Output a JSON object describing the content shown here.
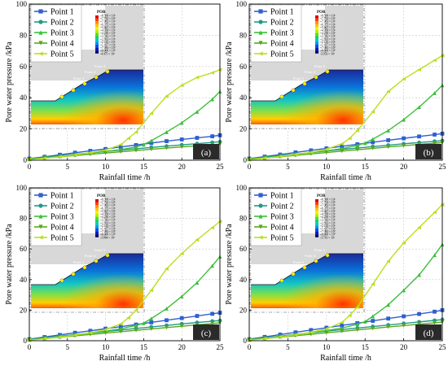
{
  "panels": [
    {
      "label": "(a)",
      "chart_data": {
        "type": "line",
        "xlabel": "Rainfall time /h",
        "ylabel": "Pore water pressure /kPa",
        "xlim": [
          0,
          25
        ],
        "ylim": [
          0,
          100
        ],
        "xticks": [
          0,
          5,
          10,
          15,
          20,
          25
        ],
        "yticks": [
          0,
          20,
          40,
          60,
          80,
          100
        ],
        "legend_position": "top-left",
        "series": [
          {
            "name": "Point 1",
            "color": "#2f5fd0",
            "marker": "square",
            "x": [
              0,
              2,
              4,
              6,
              8,
              10,
              12,
              14,
              16,
              18,
              20,
              22,
              24,
              25
            ],
            "y": [
              1,
              2.2,
              3.5,
              4.8,
              6,
              7.2,
              8.5,
              9.7,
              11,
              12.2,
              13.3,
              14.3,
              15.3,
              16
            ]
          },
          {
            "name": "Point 2",
            "color": "#1f9a8a",
            "marker": "circle",
            "x": [
              0,
              2,
              4,
              6,
              8,
              10,
              12,
              14,
              16,
              18,
              20,
              22,
              24,
              25
            ],
            "y": [
              0.8,
              1.8,
              2.8,
              3.8,
              4.7,
              5.6,
              6.5,
              7.3,
              8.2,
              9,
              9.8,
              10.6,
              11.4,
              11.8
            ]
          },
          {
            "name": "Point 3",
            "color": "#3bbf3b",
            "marker": "triangle-up",
            "x": [
              0,
              2,
              4,
              6,
              8,
              10,
              12,
              14,
              15,
              16,
              18,
              20,
              22,
              24,
              25
            ],
            "y": [
              0.6,
              1.6,
              2.6,
              3.6,
              4.6,
              5.6,
              6.8,
              8.5,
              10,
              12.5,
              18,
              24,
              31,
              39,
              44
            ]
          },
          {
            "name": "Point 4",
            "color": "#58a81c",
            "marker": "triangle-down",
            "x": [
              0,
              2,
              4,
              6,
              8,
              10,
              12,
              14,
              16,
              18,
              20,
              22,
              24,
              25
            ],
            "y": [
              0.5,
              1.3,
              2.1,
              3,
              3.8,
              4.6,
              5.4,
              6.2,
              7,
              7.8,
              8.5,
              9.2,
              9.9,
              10.3
            ]
          },
          {
            "name": "Point 5",
            "color": "#b9e020",
            "marker": "triangle-left",
            "x": [
              0,
              2,
              4,
              6,
              8,
              10,
              12,
              13,
              14,
              16,
              18,
              20,
              22,
              24,
              25
            ],
            "y": [
              0.4,
              1.2,
              2.2,
              3.4,
              4.8,
              6.5,
              10,
              14,
              18,
              30,
              41,
              48,
              53,
              56,
              58
            ]
          }
        ]
      },
      "inset": {
        "legend_title": "POR",
        "legend_values": [
          "+8.500 × 10¹",
          "+7.792 × 10¹",
          "+7.083 × 10¹",
          "+6.375 × 10¹",
          "+5.667 × 10¹",
          "+4.958 × 10¹",
          "+4.250 × 10¹",
          "+3.542 × 10¹",
          "+2.833 × 10¹",
          "+2.125 × 10¹",
          "+1.417 × 10¹",
          "+7.083 × 10⁰",
          "+0.000 × 10⁰",
          "-4.475 × 10¹"
        ],
        "point_labels": [
          "Point 1",
          "Point 2",
          "Point 3",
          "Point 4",
          "Point 5"
        ]
      }
    },
    {
      "label": "(b)",
      "chart_data": {
        "type": "line",
        "xlabel": "Rainfall time /h",
        "ylabel": "Pore water pressure /kPa",
        "xlim": [
          0,
          25
        ],
        "ylim": [
          0,
          100
        ],
        "xticks": [
          0,
          5,
          10,
          15,
          20,
          25
        ],
        "yticks": [
          0,
          20,
          40,
          60,
          80,
          100
        ],
        "legend_position": "top-left",
        "series": [
          {
            "name": "Point 1",
            "color": "#2f5fd0",
            "marker": "square",
            "x": [
              0,
              2,
              4,
              6,
              8,
              10,
              12,
              14,
              16,
              18,
              20,
              22,
              24,
              25
            ],
            "y": [
              1,
              2.3,
              3.6,
              5,
              6.3,
              7.6,
              8.9,
              10.2,
              11.5,
              12.8,
              14,
              15.2,
              16.4,
              17
            ]
          },
          {
            "name": "Point 2",
            "color": "#1f9a8a",
            "marker": "circle",
            "x": [
              0,
              2,
              4,
              6,
              8,
              10,
              12,
              14,
              16,
              18,
              20,
              22,
              24,
              25
            ],
            "y": [
              0.8,
              1.8,
              2.9,
              3.9,
              4.9,
              5.9,
              6.9,
              7.8,
              8.7,
              9.6,
              10.5,
              11.3,
              12.1,
              12.5
            ]
          },
          {
            "name": "Point 3",
            "color": "#3bbf3b",
            "marker": "triangle-up",
            "x": [
              0,
              2,
              4,
              6,
              8,
              10,
              12,
              14,
              15,
              16,
              18,
              20,
              22,
              24,
              25
            ],
            "y": [
              0.6,
              1.6,
              2.6,
              3.7,
              4.8,
              6,
              7.4,
              9.5,
              11,
              13.5,
              19,
              26,
              34,
              43,
              48
            ]
          },
          {
            "name": "Point 4",
            "color": "#58a81c",
            "marker": "triangle-down",
            "x": [
              0,
              2,
              4,
              6,
              8,
              10,
              12,
              14,
              16,
              18,
              20,
              22,
              24,
              25
            ],
            "y": [
              0.5,
              1.3,
              2.2,
              3.1,
              4,
              4.9,
              5.8,
              6.7,
              7.6,
              8.5,
              9.3,
              10.1,
              10.9,
              11.3
            ]
          },
          {
            "name": "Point 5",
            "color": "#b9e020",
            "marker": "triangle-left",
            "x": [
              0,
              2,
              4,
              6,
              8,
              10,
              12,
              13,
              14,
              16,
              18,
              20,
              22,
              24,
              25
            ],
            "y": [
              0.4,
              1.3,
              2.3,
              3.6,
              5,
              7,
              10.5,
              14,
              19,
              31,
              44,
              52,
              58,
              64,
              67
            ]
          }
        ]
      },
      "inset": {
        "legend_title": "POR",
        "legend_values": [
          "+8.500 × 10¹",
          "+7.792 × 10¹",
          "+7.083 × 10¹",
          "+6.375 × 10¹",
          "+5.667 × 10¹",
          "+4.958 × 10¹",
          "+4.250 × 10¹",
          "+3.542 × 10¹",
          "+2.833 × 10¹",
          "+2.125 × 10¹",
          "+1.417 × 10¹",
          "+7.083 × 10⁰",
          "+0.000 × 10⁰",
          "-3.953 × 10¹"
        ],
        "point_labels": [
          "Point 1",
          "Point 2",
          "Point 3",
          "Point 4",
          "Point 5"
        ]
      }
    },
    {
      "label": "(c)",
      "chart_data": {
        "type": "line",
        "xlabel": "Rainfall time /h",
        "ylabel": "Pore water pressure /kPa",
        "xlim": [
          0,
          25
        ],
        "ylim": [
          0,
          100
        ],
        "xticks": [
          0,
          5,
          10,
          15,
          20,
          25
        ],
        "yticks": [
          0,
          20,
          40,
          60,
          80,
          100
        ],
        "legend_position": "top-left",
        "series": [
          {
            "name": "Point 1",
            "color": "#2f5fd0",
            "marker": "square",
            "x": [
              0,
              2,
              4,
              6,
              8,
              10,
              12,
              14,
              16,
              18,
              20,
              22,
              24,
              25
            ],
            "y": [
              1,
              2.4,
              3.8,
              5.2,
              6.5,
              7.9,
              9.2,
              10.6,
              12,
              13.4,
              14.8,
              16.2,
              17.6,
              18.3
            ]
          },
          {
            "name": "Point 2",
            "color": "#1f9a8a",
            "marker": "circle",
            "x": [
              0,
              2,
              4,
              6,
              8,
              10,
              12,
              14,
              16,
              18,
              20,
              22,
              24,
              25
            ],
            "y": [
              0.8,
              1.9,
              3,
              4,
              5,
              6,
              7,
              8,
              9,
              10,
              11,
              11.9,
              12.8,
              13.2
            ]
          },
          {
            "name": "Point 3",
            "color": "#3bbf3b",
            "marker": "triangle-up",
            "x": [
              0,
              2,
              4,
              6,
              8,
              10,
              12,
              14,
              15,
              16,
              18,
              20,
              22,
              24,
              25
            ],
            "y": [
              0.6,
              1.6,
              2.7,
              3.8,
              5,
              6.3,
              7.8,
              10,
              11.5,
              14.5,
              21,
              29,
              38,
              49,
              55
            ]
          },
          {
            "name": "Point 4",
            "color": "#58a81c",
            "marker": "triangle-down",
            "x": [
              0,
              2,
              4,
              6,
              8,
              10,
              12,
              14,
              16,
              18,
              20,
              22,
              24,
              25
            ],
            "y": [
              0.5,
              1.4,
              2.3,
              3.2,
              4.1,
              5,
              5.9,
              6.8,
              7.7,
              8.6,
              9.5,
              10.4,
              11.3,
              11.7
            ]
          },
          {
            "name": "Point 5",
            "color": "#b9e020",
            "marker": "triangle-left",
            "x": [
              0,
              2,
              4,
              6,
              8,
              10,
              12,
              13,
              14,
              16,
              18,
              20,
              22,
              24,
              25
            ],
            "y": [
              0.4,
              1.3,
              2.4,
              3.7,
              5.2,
              7.3,
              11,
              15,
              20,
              33,
              47,
              57,
              66,
              74,
              78
            ]
          }
        ]
      },
      "inset": {
        "legend_title": "POR",
        "legend_values": [
          "+8.500 × 10¹",
          "+7.792 × 10¹",
          "+7.083 × 10¹",
          "+6.375 × 10¹",
          "+5.667 × 10¹",
          "+4.958 × 10¹",
          "+4.250 × 10¹",
          "+3.542 × 10¹",
          "+2.833 × 10¹",
          "+2.125 × 10¹",
          "+1.417 × 10¹",
          "+7.083 × 10⁰",
          "+0.000 × 10⁰",
          "-3.864 × 10¹"
        ],
        "point_labels": [
          "Point 1",
          "Point 2",
          "Point 3",
          "Point 4",
          "Point 5"
        ]
      }
    },
    {
      "label": "(d)",
      "chart_data": {
        "type": "line",
        "xlabel": "Rainfall time /h",
        "ylabel": "Pore water pressure /kPa",
        "xlim": [
          0,
          25
        ],
        "ylim": [
          0,
          100
        ],
        "xticks": [
          0,
          5,
          10,
          15,
          20,
          25
        ],
        "yticks": [
          0,
          20,
          40,
          60,
          80,
          100
        ],
        "legend_position": "top-left",
        "series": [
          {
            "name": "Point 1",
            "color": "#2f5fd0",
            "marker": "square",
            "x": [
              0,
              2,
              4,
              6,
              8,
              10,
              12,
              14,
              16,
              18,
              20,
              22,
              24,
              25
            ],
            "y": [
              1,
              2.5,
              4,
              5.5,
              7,
              8.5,
              10,
              11.5,
              13,
              14.5,
              16,
              17.5,
              19,
              20
            ]
          },
          {
            "name": "Point 2",
            "color": "#1f9a8a",
            "marker": "circle",
            "x": [
              0,
              2,
              4,
              6,
              8,
              10,
              12,
              14,
              16,
              18,
              20,
              22,
              24,
              25
            ],
            "y": [
              0.8,
              1.9,
              3,
              4.1,
              5.2,
              6.3,
              7.3,
              8.3,
              9.3,
              10.3,
              11.3,
              12.3,
              13.3,
              13.8
            ]
          },
          {
            "name": "Point 3",
            "color": "#3bbf3b",
            "marker": "triangle-up",
            "x": [
              0,
              2,
              4,
              6,
              8,
              10,
              12,
              14,
              15,
              16,
              18,
              20,
              22,
              24,
              25
            ],
            "y": [
              0.6,
              1.7,
              2.8,
              4,
              5.3,
              6.7,
              8.3,
              10.8,
              12.5,
              16,
              23.5,
              33,
              43,
              56,
              63
            ]
          },
          {
            "name": "Point 4",
            "color": "#58a81c",
            "marker": "triangle-down",
            "x": [
              0,
              2,
              4,
              6,
              8,
              10,
              12,
              14,
              16,
              18,
              20,
              22,
              24,
              25
            ],
            "y": [
              0.5,
              1.4,
              2.3,
              3.3,
              4.2,
              5.2,
              6.1,
              7.1,
              8,
              9,
              9.9,
              10.8,
              11.7,
              12.2
            ]
          },
          {
            "name": "Point 5",
            "color": "#b9e020",
            "marker": "triangle-left",
            "x": [
              0,
              2,
              4,
              6,
              8,
              10,
              12,
              13,
              14,
              16,
              18,
              20,
              22,
              24,
              25
            ],
            "y": [
              0.4,
              1.3,
              2.5,
              3.8,
              5.5,
              7.8,
              12,
              16.5,
              22,
              37,
              52,
              64,
              74,
              84,
              89
            ]
          }
        ]
      },
      "inset": {
        "legend_title": "POR",
        "legend_values": [
          "+8.500 × 10¹",
          "+7.792 × 10¹",
          "+7.083 × 10¹",
          "+6.375 × 10¹",
          "+5.667 × 10¹",
          "+4.958 × 10¹",
          "+4.250 × 10¹",
          "+3.542 × 10¹",
          "+2.833 × 10¹",
          "+2.125 × 10¹",
          "+1.417 × 10¹",
          "+7.083 × 10⁰",
          "+0.000 × 10⁰",
          "-3.761 × 10¹"
        ],
        "point_labels": [
          "Point 1",
          "Point 2",
          "Point 3",
          "Point 4",
          "Point 5"
        ]
      }
    }
  ],
  "colorbar_colors": [
    "#d40000",
    "#ff3d00",
    "#ff8c00",
    "#ffc400",
    "#f2f200",
    "#b8f000",
    "#5fe000",
    "#00d46a",
    "#00c8c0",
    "#0096f0",
    "#0050e6",
    "#0018c8",
    "#00006e"
  ]
}
